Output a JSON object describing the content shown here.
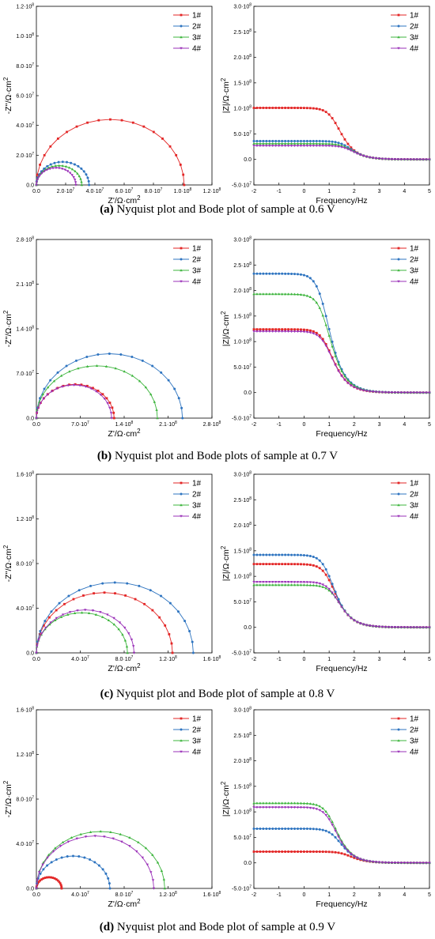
{
  "colors": {
    "s1": "#e32626",
    "s2": "#2e74c0",
    "s3": "#3cb43c",
    "s4": "#9a30b8"
  },
  "legend": [
    "1#",
    "2#",
    "3#",
    "4#"
  ],
  "captions": [
    {
      "letter": "(a)",
      "text": " Nyquist plot and Bode plot of sample at 0.6 V"
    },
    {
      "letter": "(b)",
      "text": " Nyquist plot and Bode plots of sample at 0.7 V"
    },
    {
      "letter": "(c)",
      "text": " Nyquist plot and Bode plot of sample at 0.8 V"
    },
    {
      "letter": "(d)",
      "text": " Nyquist plot and Bode plot of sample at 0.9 V"
    }
  ],
  "chart_data": [
    {
      "panel": "a",
      "type": "scatter",
      "plot": "nyquist",
      "xlabel": "Z'/Ω·cm2",
      "ylabel": "-Z''/Ω·cm2",
      "xlim": [
        0,
        120000000
      ],
      "ylim": [
        0,
        120000000
      ],
      "xticks": [
        0,
        20000000,
        40000000,
        60000000,
        80000000,
        100000000,
        120000000
      ],
      "xticklabels": [
        "0.0",
        "2.0·10^7",
        "4.0·10^7",
        "6.0·10^7",
        "8.0·10^7",
        "1.0·10^8",
        "1.2·10^8"
      ],
      "yticks": [
        0,
        20000000,
        40000000,
        60000000,
        80000000,
        100000000,
        120000000
      ],
      "yticklabels": [
        "0.0",
        "2.0·10^7",
        "4.0·10^7",
        "6.0·10^7",
        "8.0·10^7",
        "1.0·10^8",
        "1.2·10^8"
      ],
      "legend_position": "top-right",
      "series": [
        {
          "name": "1#",
          "color_key": "s1",
          "r0": 0,
          "r": 101000000,
          "peak": 44000000
        },
        {
          "name": "2#",
          "color_key": "s2",
          "r0": 0,
          "r": 36000000,
          "peak": 15500000
        },
        {
          "name": "3#",
          "color_key": "s3",
          "r0": 0,
          "r": 31000000,
          "peak": 13000000
        },
        {
          "name": "4#",
          "color_key": "s4",
          "r0": 0,
          "r": 27000000,
          "peak": 11500000
        }
      ]
    },
    {
      "panel": "a",
      "type": "line",
      "plot": "bode",
      "xlabel": "Frequency/Hz",
      "ylabel": "|Z|/Ω·cm2",
      "xlim": [
        -2,
        5
      ],
      "ylim": [
        -50000000,
        300000000
      ],
      "xticks": [
        -2,
        -1,
        0,
        1,
        2,
        3,
        4,
        5
      ],
      "xticklabels": [
        "-2",
        "-1",
        "0",
        "1",
        "2",
        "3",
        "4",
        "5"
      ],
      "yticks": [
        -50000000,
        0,
        50000000,
        100000000,
        150000000,
        200000000,
        250000000,
        300000000
      ],
      "yticklabels": [
        "-5.0·10^7",
        "0.0",
        "5.0·10^7",
        "1.0·10^8",
        "1.5·10^8",
        "2.0·10^8",
        "2.5·10^8",
        "3.0·10^8"
      ],
      "legend_position": "top-right",
      "series": [
        {
          "name": "1#",
          "color_key": "s1",
          "plateau": 101000000,
          "log_break": 1.25
        },
        {
          "name": "2#",
          "color_key": "s2",
          "plateau": 36000000,
          "log_break": 1.7
        },
        {
          "name": "3#",
          "color_key": "s3",
          "plateau": 31000000,
          "log_break": 1.75
        },
        {
          "name": "4#",
          "color_key": "s4",
          "plateau": 27000000,
          "log_break": 1.8
        }
      ]
    },
    {
      "panel": "b",
      "type": "scatter",
      "plot": "nyquist",
      "xlabel": "Z'/Ω·cm2",
      "ylabel": "-Z''/Ω·cm2",
      "xlim": [
        0,
        280000000
      ],
      "ylim": [
        0,
        280000000
      ],
      "xticks": [
        0,
        70000000,
        140000000,
        210000000,
        280000000
      ],
      "xticklabels": [
        "0.0",
        "7.0·10^7",
        "1.4·10^8",
        "2.1·10^8",
        "2.8·10^8"
      ],
      "yticks": [
        0,
        70000000,
        140000000,
        210000000,
        280000000
      ],
      "yticklabels": [
        "0.0",
        "7.0·10^7",
        "1.4·10^8",
        "2.1·10^8",
        "2.8·10^8"
      ],
      "legend_position": "top-right",
      "series": [
        {
          "name": "1#",
          "color_key": "s1",
          "r0": 0,
          "r": 124000000,
          "peak": 53000000
        },
        {
          "name": "2#",
          "color_key": "s2",
          "r0": 0,
          "r": 233000000,
          "peak": 101000000
        },
        {
          "name": "3#",
          "color_key": "s3",
          "r0": 0,
          "r": 193000000,
          "peak": 82000000
        },
        {
          "name": "4#",
          "color_key": "s4",
          "r0": 0,
          "r": 120000000,
          "peak": 52000000
        }
      ]
    },
    {
      "panel": "b",
      "type": "line",
      "plot": "bode",
      "xlabel": "Frequency/Hz",
      "ylabel": "|Z|/Ω·cm2",
      "xlim": [
        -2,
        5
      ],
      "ylim": [
        -50000000,
        300000000
      ],
      "xticks": [
        -2,
        -1,
        0,
        1,
        2,
        3,
        4,
        5
      ],
      "xticklabels": [
        "-2",
        "-1",
        "0",
        "1",
        "2",
        "3",
        "4",
        "5"
      ],
      "yticks": [
        -50000000,
        0,
        50000000,
        100000000,
        150000000,
        200000000,
        250000000,
        300000000
      ],
      "yticklabels": [
        "-5.0·10^7",
        "0.0",
        "5.0·10^7",
        "1.0·10^8",
        "1.5·10^8",
        "2.0·10^8",
        "2.5·10^8",
        "3.0·10^8"
      ],
      "legend_position": "top-right",
      "series": [
        {
          "name": "1#",
          "color_key": "s1",
          "plateau": 124000000,
          "log_break": 0.95
        },
        {
          "name": "2#",
          "color_key": "s2",
          "plateau": 233000000,
          "log_break": 0.8
        },
        {
          "name": "3#",
          "color_key": "s3",
          "plateau": 193000000,
          "log_break": 0.85
        },
        {
          "name": "4#",
          "color_key": "s4",
          "plateau": 120000000,
          "log_break": 0.95
        }
      ]
    },
    {
      "panel": "c",
      "type": "scatter",
      "plot": "nyquist",
      "xlabel": "Z'/Ω·cm2",
      "ylabel": "-Z''/Ω·cm2",
      "xlim": [
        0,
        160000000
      ],
      "ylim": [
        0,
        160000000
      ],
      "xticks": [
        0,
        40000000,
        80000000,
        120000000,
        160000000
      ],
      "xticklabels": [
        "0.0",
        "4.0·10^7",
        "8.0·10^7",
        "1.2·10^8",
        "1.6·10^8"
      ],
      "yticks": [
        0,
        40000000,
        80000000,
        120000000,
        160000000
      ],
      "yticklabels": [
        "0.0",
        "4.0·10^7",
        "8.0·10^7",
        "1.2·10^8",
        "1.6·10^8"
      ],
      "legend_position": "top-right",
      "series": [
        {
          "name": "1#",
          "color_key": "s1",
          "r0": 0,
          "r": 124000000,
          "peak": 54000000
        },
        {
          "name": "2#",
          "color_key": "s2",
          "r0": 0,
          "r": 143000000,
          "peak": 63000000
        },
        {
          "name": "3#",
          "color_key": "s3",
          "r0": 0,
          "r": 83000000,
          "peak": 36000000
        },
        {
          "name": "4#",
          "color_key": "s4",
          "r0": 0,
          "r": 89000000,
          "peak": 38500000
        }
      ]
    },
    {
      "panel": "c",
      "type": "line",
      "plot": "bode",
      "xlabel": "Frequency/Hz",
      "ylabel": "|Z|/Ω·cm2",
      "xlim": [
        -2,
        5
      ],
      "ylim": [
        -50000000,
        300000000
      ],
      "xticks": [
        -2,
        -1,
        0,
        1,
        2,
        3,
        4,
        5
      ],
      "xticklabels": [
        "-2",
        "-1",
        "0",
        "1",
        "2",
        "3",
        "4",
        "5"
      ],
      "yticks": [
        -50000000,
        0,
        50000000,
        100000000,
        150000000,
        200000000,
        250000000,
        300000000
      ],
      "yticklabels": [
        "-5.0·10^7",
        "0.0",
        "5.0·10^7",
        "1.0·10^8",
        "1.5·10^8",
        "2.0·10^8",
        "2.5·10^8",
        "3.0·10^8"
      ],
      "legend_position": "top-right",
      "series": [
        {
          "name": "1#",
          "color_key": "s1",
          "plateau": 124000000,
          "log_break": 1.05
        },
        {
          "name": "2#",
          "color_key": "s2",
          "plateau": 142000000,
          "log_break": 1.0
        },
        {
          "name": "3#",
          "color_key": "s3",
          "plateau": 83000000,
          "log_break": 1.25
        },
        {
          "name": "4#",
          "color_key": "s4",
          "plateau": 89000000,
          "log_break": 1.2
        }
      ]
    },
    {
      "panel": "d",
      "type": "scatter",
      "plot": "nyquist",
      "xlabel": "Z'/Ω·cm2",
      "ylabel": "-Z''/Ω·cm2",
      "xlim": [
        0,
        160000000
      ],
      "ylim": [
        0,
        160000000
      ],
      "xticks": [
        0,
        40000000,
        80000000,
        120000000,
        160000000
      ],
      "xticklabels": [
        "0.0",
        "4.0·10^7",
        "8.0·10^7",
        "1.2·10^8",
        "1.6·10^8"
      ],
      "yticks": [
        0,
        40000000,
        80000000,
        120000000,
        160000000
      ],
      "yticklabels": [
        "0.0",
        "4.0·10^7",
        "8.0·10^7",
        "1.2·10^8",
        "1.6·10^8"
      ],
      "legend_position": "top-right",
      "series": [
        {
          "name": "1#",
          "color_key": "s1",
          "r0": 0,
          "r": 23000000,
          "peak": 10000000
        },
        {
          "name": "2#",
          "color_key": "s2",
          "r0": 0,
          "r": 67000000,
          "peak": 29000000
        },
        {
          "name": "3#",
          "color_key": "s3",
          "r0": 0,
          "r": 117000000,
          "peak": 51000000
        },
        {
          "name": "4#",
          "color_key": "s4",
          "r0": 0,
          "r": 107000000,
          "peak": 47000000
        }
      ]
    },
    {
      "panel": "d",
      "type": "line",
      "plot": "bode",
      "xlabel": "Frequency/Hz",
      "ylabel": "|Z|/Ω·cm2",
      "xlim": [
        -2,
        5
      ],
      "ylim": [
        -50000000,
        300000000
      ],
      "xticks": [
        -2,
        -1,
        0,
        1,
        2,
        3,
        4,
        5
      ],
      "xticklabels": [
        "-2",
        "-1",
        "0",
        "1",
        "2",
        "3",
        "4",
        "5"
      ],
      "yticks": [
        -50000000,
        0,
        50000000,
        100000000,
        150000000,
        200000000,
        250000000,
        300000000
      ],
      "yticklabels": [
        "-5.0·10^7",
        "0.0",
        "5.0·10^7",
        "1.0·10^8",
        "1.5·10^8",
        "2.0·10^8",
        "2.5·10^8",
        "3.0·10^8"
      ],
      "legend_position": "top-right",
      "series": [
        {
          "name": "1#",
          "color_key": "s1",
          "plateau": 22000000,
          "log_break": 1.7
        },
        {
          "name": "2#",
          "color_key": "s2",
          "plateau": 67000000,
          "log_break": 1.3
        },
        {
          "name": "3#",
          "color_key": "s3",
          "plateau": 117000000,
          "log_break": 1.1
        },
        {
          "name": "4#",
          "color_key": "s4",
          "plateau": 109000000,
          "log_break": 1.1
        }
      ]
    }
  ]
}
